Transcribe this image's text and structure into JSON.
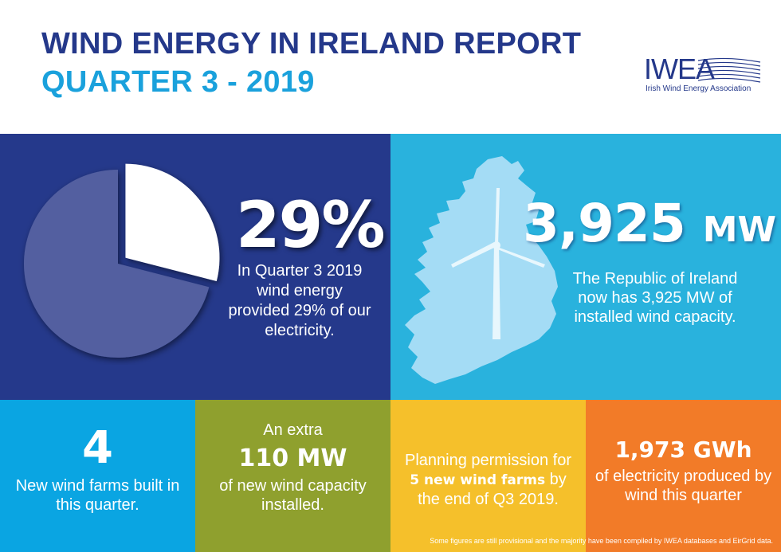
{
  "header": {
    "title_line1": "WIND ENERGY IN IRELAND REPORT",
    "title_line2": "QUARTER 3 - 2019"
  },
  "logo": {
    "name": "IWEA",
    "subtitle": "Irish Wind Energy Association"
  },
  "share_panel": {
    "value_text": "29%",
    "value_fraction": 0.29,
    "description": "In Quarter 3 2019 wind energy provided 29% of our electricity."
  },
  "capacity_panel": {
    "value": "3,925",
    "unit": "MW",
    "description": "The Republic of Ireland now has 3,925 MW of installed wind capacity."
  },
  "stats": {
    "farms_built": {
      "value": "4",
      "text": "New wind farms built in this quarter."
    },
    "capacity_added": {
      "prefix": "An extra",
      "value": "110 MW",
      "text": "of new wind capacity installed."
    },
    "planning": {
      "before": "Planning permission for ",
      "bold": "5 new wind farms",
      "after": " by the end of Q3 2019."
    },
    "generation": {
      "value": "1,973 GWh",
      "text": "of electricity produced by wind this quarter"
    }
  },
  "footnote": "Some figures are still provisional and the majority have been compiled by IWEA databases and EirGrid data.",
  "colors": {
    "navy": "#25398b",
    "cyan": "#29b2dd",
    "blue": "#0aa5e2",
    "olive": "#8fa02e",
    "yellow": "#f5c02b",
    "orange": "#f27b28",
    "pie_main": "#525fa0",
    "map_fill": "#a4dcf5"
  }
}
